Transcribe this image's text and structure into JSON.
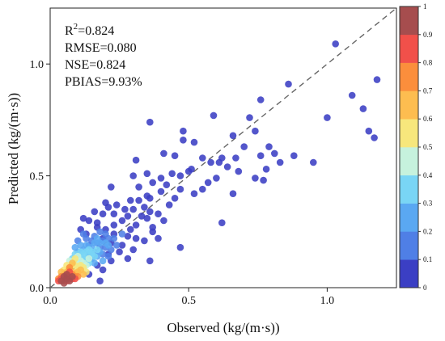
{
  "chart_data": {
    "type": "scatter",
    "title": "",
    "xlabel": "Observed (kg/(m·s))",
    "ylabel": "Predicted (kg/(m·s))",
    "xlim": [
      0,
      1.25
    ],
    "ylim": [
      0,
      1.25
    ],
    "xticks": [
      "0.0",
      "0.5",
      "1.0"
    ],
    "yticks": [
      "0.0",
      "0.5",
      "1.0"
    ],
    "grid": false,
    "reference_line": "1:1 dashed",
    "colorbar": {
      "ticks": [
        "0",
        "0.1",
        "0.2",
        "0.3",
        "0.4",
        "0.5",
        "0.6",
        "0.7",
        "0.8",
        "0.9",
        "1"
      ],
      "colors": [
        "#3b3fc4",
        "#4f7fe6",
        "#5aa8f2",
        "#79d5f5",
        "#c6f2dd",
        "#f7e77c",
        "#fdbd50",
        "#fb8e3c",
        "#f1504a",
        "#a64d4e"
      ]
    },
    "stats": {
      "r2_label": "R",
      "r2_sup": "2",
      "r2_value": "=0.824",
      "rmse": "RMSE=0.080",
      "nse": "NSE=0.824",
      "pbias": "PBIAS=9.93%"
    },
    "points": [
      [
        1.03,
        1.09,
        0
      ],
      [
        1.18,
        0.93,
        0
      ],
      [
        0.86,
        0.91,
        0
      ],
      [
        0.76,
        0.84,
        0
      ],
      [
        1.09,
        0.86,
        0
      ],
      [
        1.13,
        0.8,
        0
      ],
      [
        0.59,
        0.77,
        0
      ],
      [
        0.72,
        0.76,
        0
      ],
      [
        1.0,
        0.76,
        0
      ],
      [
        0.36,
        0.74,
        0
      ],
      [
        0.48,
        0.7,
        0
      ],
      [
        0.66,
        0.68,
        0
      ],
      [
        0.48,
        0.66,
        0
      ],
      [
        0.74,
        0.7,
        0
      ],
      [
        0.52,
        0.65,
        0
      ],
      [
        1.15,
        0.7,
        0
      ],
      [
        1.17,
        0.67,
        0
      ],
      [
        0.7,
        0.63,
        0
      ],
      [
        0.79,
        0.63,
        0
      ],
      [
        0.81,
        0.6,
        0
      ],
      [
        0.88,
        0.59,
        0
      ],
      [
        0.76,
        0.59,
        0
      ],
      [
        0.62,
        0.58,
        0
      ],
      [
        0.41,
        0.6,
        0
      ],
      [
        0.45,
        0.59,
        0
      ],
      [
        0.55,
        0.58,
        0
      ],
      [
        0.67,
        0.58,
        0
      ],
      [
        0.61,
        0.56,
        0
      ],
      [
        0.95,
        0.56,
        0
      ],
      [
        0.31,
        0.57,
        0
      ],
      [
        0.58,
        0.56,
        0
      ],
      [
        0.83,
        0.56,
        0
      ],
      [
        0.78,
        0.53,
        0
      ],
      [
        0.64,
        0.54,
        0
      ],
      [
        0.51,
        0.53,
        0
      ],
      [
        0.5,
        0.52,
        0
      ],
      [
        0.68,
        0.52,
        0
      ],
      [
        0.44,
        0.51,
        0
      ],
      [
        0.35,
        0.51,
        0
      ],
      [
        0.47,
        0.5,
        0
      ],
      [
        0.4,
        0.49,
        0
      ],
      [
        0.3,
        0.5,
        0
      ],
      [
        0.6,
        0.49,
        0
      ],
      [
        0.57,
        0.47,
        0
      ],
      [
        0.77,
        0.48,
        0
      ],
      [
        0.74,
        0.49,
        0
      ],
      [
        0.42,
        0.46,
        0
      ],
      [
        0.37,
        0.47,
        0
      ],
      [
        0.32,
        0.45,
        0
      ],
      [
        0.22,
        0.45,
        0
      ],
      [
        0.47,
        0.44,
        0
      ],
      [
        0.55,
        0.44,
        0
      ],
      [
        0.4,
        0.43,
        0
      ],
      [
        0.52,
        0.42,
        0
      ],
      [
        0.66,
        0.42,
        0
      ],
      [
        0.35,
        0.41,
        0
      ],
      [
        0.36,
        0.4,
        0
      ],
      [
        0.45,
        0.4,
        0
      ],
      [
        0.29,
        0.39,
        0
      ],
      [
        0.32,
        0.39,
        0
      ],
      [
        0.2,
        0.38,
        0
      ],
      [
        0.21,
        0.36,
        0
      ],
      [
        0.24,
        0.37,
        0
      ],
      [
        0.43,
        0.37,
        0
      ],
      [
        0.34,
        0.36,
        0
      ],
      [
        0.27,
        0.35,
        0
      ],
      [
        0.3,
        0.35,
        0
      ],
      [
        0.36,
        0.34,
        0
      ],
      [
        0.39,
        0.33,
        0
      ],
      [
        0.33,
        0.32,
        0
      ],
      [
        0.23,
        0.33,
        0
      ],
      [
        0.19,
        0.33,
        0
      ],
      [
        0.28,
        0.32,
        0
      ],
      [
        0.35,
        0.31,
        0
      ],
      [
        0.41,
        0.3,
        0
      ],
      [
        0.26,
        0.3,
        0
      ],
      [
        0.62,
        0.29,
        0
      ],
      [
        0.17,
        0.29,
        0
      ],
      [
        0.23,
        0.28,
        0
      ],
      [
        0.31,
        0.28,
        0
      ],
      [
        0.37,
        0.27,
        0
      ],
      [
        0.2,
        0.26,
        0
      ],
      [
        0.29,
        0.26,
        0
      ],
      [
        0.37,
        0.25,
        0
      ],
      [
        0.39,
        0.22,
        0
      ],
      [
        0.23,
        0.24,
        0
      ],
      [
        0.28,
        0.23,
        0
      ],
      [
        0.31,
        0.22,
        0
      ],
      [
        0.19,
        0.22,
        0
      ],
      [
        0.34,
        0.21,
        0
      ],
      [
        0.22,
        0.2,
        0
      ],
      [
        0.26,
        0.19,
        0
      ],
      [
        0.47,
        0.18,
        0
      ],
      [
        0.3,
        0.17,
        0
      ],
      [
        0.25,
        0.16,
        0
      ],
      [
        0.21,
        0.15,
        0
      ],
      [
        0.28,
        0.13,
        0
      ],
      [
        0.36,
        0.12,
        0
      ],
      [
        0.15,
        0.14,
        0
      ],
      [
        0.22,
        0.12,
        0
      ],
      [
        0.17,
        0.1,
        0
      ],
      [
        0.19,
        0.08,
        0
      ],
      [
        0.14,
        0.06,
        0
      ],
      [
        0.18,
        0.03,
        0
      ],
      [
        0.11,
        0.26,
        0
      ],
      [
        0.13,
        0.24,
        0
      ],
      [
        0.14,
        0.3,
        0
      ],
      [
        0.17,
        0.27,
        0
      ],
      [
        0.16,
        0.34,
        0
      ],
      [
        0.12,
        0.31,
        0
      ],
      [
        0.18,
        0.25,
        1
      ],
      [
        0.2,
        0.24,
        1
      ],
      [
        0.21,
        0.22,
        1
      ],
      [
        0.16,
        0.23,
        1
      ],
      [
        0.19,
        0.21,
        1
      ],
      [
        0.17,
        0.2,
        1
      ],
      [
        0.15,
        0.21,
        1
      ],
      [
        0.18,
        0.18,
        1
      ],
      [
        0.14,
        0.19,
        1
      ],
      [
        0.2,
        0.18,
        1
      ],
      [
        0.13,
        0.22,
        1
      ],
      [
        0.22,
        0.17,
        1
      ],
      [
        0.21,
        0.14,
        1
      ],
      [
        0.19,
        0.15,
        1
      ],
      [
        0.12,
        0.24,
        1
      ],
      [
        0.1,
        0.21,
        1
      ],
      [
        0.16,
        0.16,
        1
      ],
      [
        0.24,
        0.19,
        1
      ],
      [
        0.23,
        0.22,
        1
      ],
      [
        0.26,
        0.24,
        1
      ],
      [
        0.17,
        0.22,
        2
      ],
      [
        0.16,
        0.2,
        2
      ],
      [
        0.15,
        0.18,
        2
      ],
      [
        0.18,
        0.16,
        2
      ],
      [
        0.13,
        0.19,
        2
      ],
      [
        0.12,
        0.17,
        2
      ],
      [
        0.17,
        0.14,
        2
      ],
      [
        0.14,
        0.15,
        2
      ],
      [
        0.19,
        0.12,
        2
      ],
      [
        0.11,
        0.19,
        2
      ],
      [
        0.1,
        0.16,
        2
      ],
      [
        0.15,
        0.13,
        2
      ],
      [
        0.2,
        0.2,
        2
      ],
      [
        0.13,
        0.12,
        2
      ],
      [
        0.16,
        0.11,
        2
      ],
      [
        0.21,
        0.19,
        2
      ],
      [
        0.09,
        0.18,
        2
      ],
      [
        0.18,
        0.2,
        2
      ],
      [
        0.14,
        0.17,
        3
      ],
      [
        0.12,
        0.15,
        3
      ],
      [
        0.15,
        0.15,
        3
      ],
      [
        0.11,
        0.14,
        3
      ],
      [
        0.13,
        0.13,
        3
      ],
      [
        0.16,
        0.14,
        3
      ],
      [
        0.1,
        0.13,
        3
      ],
      [
        0.12,
        0.12,
        3
      ],
      [
        0.14,
        0.11,
        3
      ],
      [
        0.09,
        0.15,
        3
      ],
      [
        0.17,
        0.17,
        3
      ],
      [
        0.11,
        0.16,
        3
      ],
      [
        0.13,
        0.16,
        3
      ],
      [
        0.15,
        0.16,
        3
      ],
      [
        0.08,
        0.13,
        3
      ],
      [
        0.1,
        0.11,
        3
      ],
      [
        0.12,
        0.1,
        3
      ],
      [
        0.09,
        0.12,
        4
      ],
      [
        0.11,
        0.12,
        4
      ],
      [
        0.1,
        0.14,
        4
      ],
      [
        0.12,
        0.11,
        4
      ],
      [
        0.08,
        0.11,
        4
      ],
      [
        0.13,
        0.1,
        4
      ],
      [
        0.1,
        0.1,
        4
      ],
      [
        0.14,
        0.13,
        4
      ],
      [
        0.07,
        0.12,
        4
      ],
      [
        0.08,
        0.1,
        5
      ],
      [
        0.09,
        0.1,
        5
      ],
      [
        0.11,
        0.1,
        5
      ],
      [
        0.07,
        0.09,
        5
      ],
      [
        0.1,
        0.08,
        5
      ],
      [
        0.12,
        0.09,
        5
      ],
      [
        0.06,
        0.1,
        5
      ],
      [
        0.09,
        0.13,
        5
      ],
      [
        0.05,
        0.08,
        5
      ],
      [
        0.13,
        0.07,
        5
      ],
      [
        0.07,
        0.08,
        6
      ],
      [
        0.08,
        0.07,
        6
      ],
      [
        0.1,
        0.07,
        6
      ],
      [
        0.06,
        0.07,
        6
      ],
      [
        0.09,
        0.06,
        6
      ],
      [
        0.11,
        0.08,
        6
      ],
      [
        0.05,
        0.06,
        6
      ],
      [
        0.04,
        0.07,
        6
      ],
      [
        0.08,
        0.11,
        6
      ],
      [
        0.12,
        0.06,
        6
      ],
      [
        0.06,
        0.06,
        7
      ],
      [
        0.07,
        0.05,
        7
      ],
      [
        0.08,
        0.06,
        7
      ],
      [
        0.05,
        0.05,
        7
      ],
      [
        0.09,
        0.05,
        7
      ],
      [
        0.04,
        0.05,
        7
      ],
      [
        0.1,
        0.05,
        7
      ],
      [
        0.03,
        0.04,
        7
      ],
      [
        0.07,
        0.09,
        7
      ],
      [
        0.06,
        0.04,
        7
      ],
      [
        0.05,
        0.04,
        8
      ],
      [
        0.06,
        0.05,
        8
      ],
      [
        0.07,
        0.04,
        8
      ],
      [
        0.04,
        0.04,
        8
      ],
      [
        0.08,
        0.04,
        8
      ],
      [
        0.05,
        0.03,
        8
      ],
      [
        0.06,
        0.03,
        8
      ],
      [
        0.03,
        0.03,
        8
      ],
      [
        0.09,
        0.04,
        8
      ],
      [
        0.07,
        0.07,
        8
      ],
      [
        0.05,
        0.05,
        9
      ],
      [
        0.06,
        0.04,
        9
      ],
      [
        0.04,
        0.03,
        9
      ],
      [
        0.05,
        0.02,
        9
      ],
      [
        0.07,
        0.03,
        9
      ],
      [
        0.06,
        0.06,
        9
      ],
      [
        0.08,
        0.05,
        9
      ]
    ]
  }
}
